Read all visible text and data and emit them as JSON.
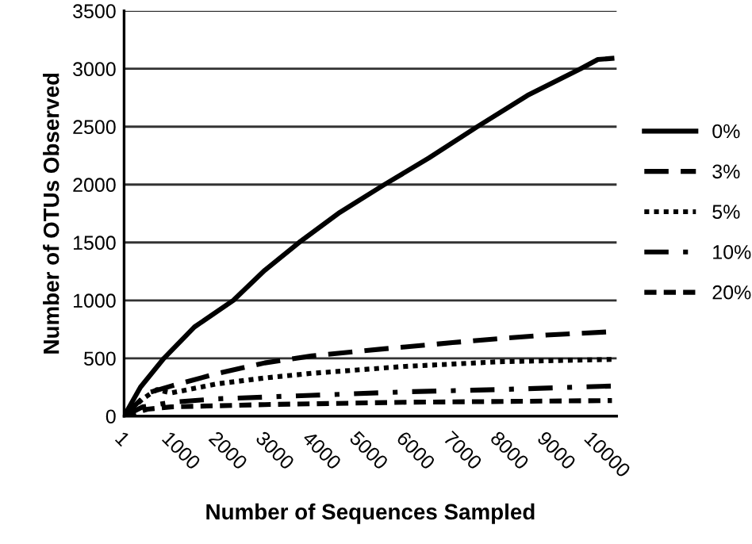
{
  "chart_data": {
    "type": "line",
    "xlabel": "Number of Sequences Sampled",
    "ylabel": "Number of OTUs Observed",
    "xlim": [
      1,
      10500
    ],
    "xticks": [
      1,
      1000,
      2000,
      3000,
      4000,
      5000,
      6000,
      7000,
      8000,
      9000,
      10000
    ],
    "ylim": [
      0,
      3500
    ],
    "yticks": [
      0,
      500,
      1000,
      1500,
      2000,
      2500,
      3000,
      3500
    ],
    "grid": "y",
    "legend": "right",
    "marker": "none",
    "series": [
      {
        "name": "0%",
        "color": "#000000",
        "line_style": "solid",
        "x": [
          1,
          350,
          850,
          1500,
          2330,
          3000,
          3730,
          4600,
          5550,
          6500,
          7530,
          8600,
          9730,
          10100,
          10400
        ],
        "values": [
          0,
          250,
          500,
          770,
          1000,
          1260,
          1500,
          1760,
          2000,
          2230,
          2500,
          2770,
          3000,
          3080,
          3090
        ]
      },
      {
        "name": "3%",
        "color": "#000000",
        "line_style": "dashed",
        "x": [
          1,
          500,
          1000,
          2000,
          3000,
          4000,
          5500,
          7000,
          8000,
          9000,
          10400
        ],
        "values": [
          0,
          200,
          260,
          370,
          460,
          520,
          580,
          635,
          670,
          700,
          730
        ]
      },
      {
        "name": "5%",
        "color": "#000000",
        "line_style": "dotted",
        "x": [
          1,
          400,
          700,
          1000,
          2000,
          3000,
          4000,
          6000,
          8000,
          10400
        ],
        "values": [
          0,
          150,
          230,
          200,
          280,
          330,
          370,
          430,
          470,
          490
        ]
      },
      {
        "name": "10%",
        "color": "#000000",
        "line_style": "dashdot",
        "x": [
          1,
          400,
          1000,
          2000,
          4000,
          6000,
          8000,
          10400
        ],
        "values": [
          0,
          80,
          120,
          150,
          180,
          210,
          230,
          260
        ]
      },
      {
        "name": "20%",
        "color": "#000000",
        "line_style": "short_dashed",
        "x": [
          1,
          500,
          1000,
          3000,
          6000,
          10400
        ],
        "values": [
          0,
          60,
          80,
          100,
          120,
          135
        ]
      }
    ]
  }
}
